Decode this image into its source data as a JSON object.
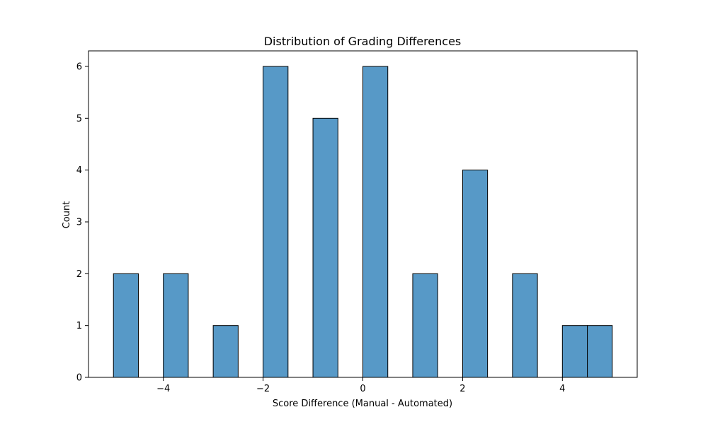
{
  "chart_data": {
    "type": "bar",
    "title": "Distribution of Grading Differences",
    "xlabel": "Score Difference (Manual - Automated)",
    "ylabel": "Count",
    "xlim": [
      -5.5,
      5.5
    ],
    "ylim": [
      0,
      6.3
    ],
    "xticks": [
      -4,
      -2,
      0,
      2,
      4
    ],
    "xtick_labels": [
      "−4",
      "−2",
      "0",
      "2",
      "4"
    ],
    "yticks": [
      0,
      1,
      2,
      3,
      4,
      5,
      6
    ],
    "ytick_labels": [
      "0",
      "1",
      "2",
      "3",
      "4",
      "5",
      "6"
    ],
    "grid": false,
    "bar_color": "#5799c7",
    "bar_edge_color": "#000000",
    "bins": [
      {
        "x0": -5.0,
        "x1": -4.5,
        "count": 2
      },
      {
        "x0": -4.0,
        "x1": -3.5,
        "count": 2
      },
      {
        "x0": -3.0,
        "x1": -2.5,
        "count": 1
      },
      {
        "x0": -2.0,
        "x1": -1.5,
        "count": 6
      },
      {
        "x0": -1.0,
        "x1": -0.5,
        "count": 5
      },
      {
        "x0": 0.0,
        "x1": 0.5,
        "count": 6
      },
      {
        "x0": 1.0,
        "x1": 1.5,
        "count": 2
      },
      {
        "x0": 2.0,
        "x1": 2.5,
        "count": 4
      },
      {
        "x0": 3.0,
        "x1": 3.5,
        "count": 2
      },
      {
        "x0": 4.0,
        "x1": 4.5,
        "count": 1
      },
      {
        "x0": 4.5,
        "x1": 5.0,
        "count": 1
      }
    ]
  }
}
